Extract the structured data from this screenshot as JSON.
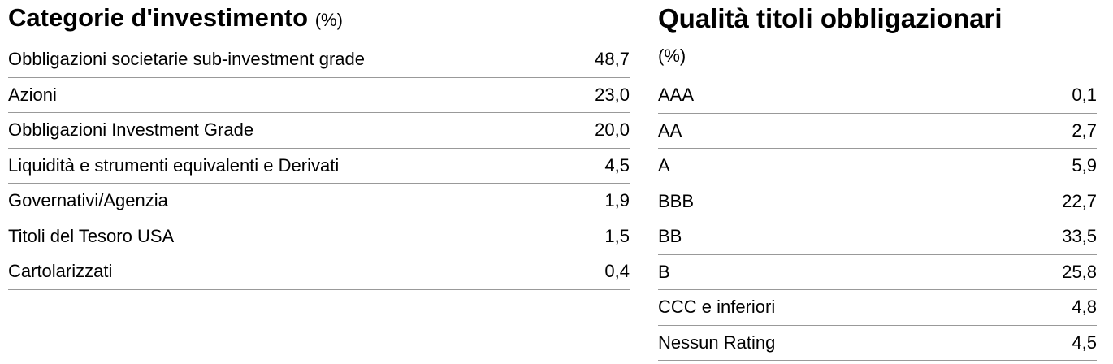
{
  "left": {
    "title": "Categorie d'investimento",
    "unit": "(%)",
    "rows": [
      [
        "Obbligazioni societarie sub-investment grade",
        "48,7"
      ],
      [
        "Azioni",
        "23,0"
      ],
      [
        "Obbligazioni Investment Grade",
        "20,0"
      ],
      [
        "Liquidità e strumenti equivalenti e Derivati",
        "4,5"
      ],
      [
        "Governativi/Agenzia",
        "1,9"
      ],
      [
        "Titoli del Tesoro USA",
        "1,5"
      ],
      [
        "Cartolarizzati",
        "0,4"
      ]
    ]
  },
  "right": {
    "title": "Qualità titoli obbligazionari",
    "unit": "(%)",
    "rows": [
      [
        "AAA",
        "0,1"
      ],
      [
        "AA",
        "2,7"
      ],
      [
        "A",
        "5,9"
      ],
      [
        "BBB",
        "22,7"
      ],
      [
        "BB",
        "33,5"
      ],
      [
        "B",
        "25,8"
      ],
      [
        "CCC e inferiori",
        "4,8"
      ],
      [
        "Nessun Rating",
        "4,5"
      ]
    ]
  }
}
